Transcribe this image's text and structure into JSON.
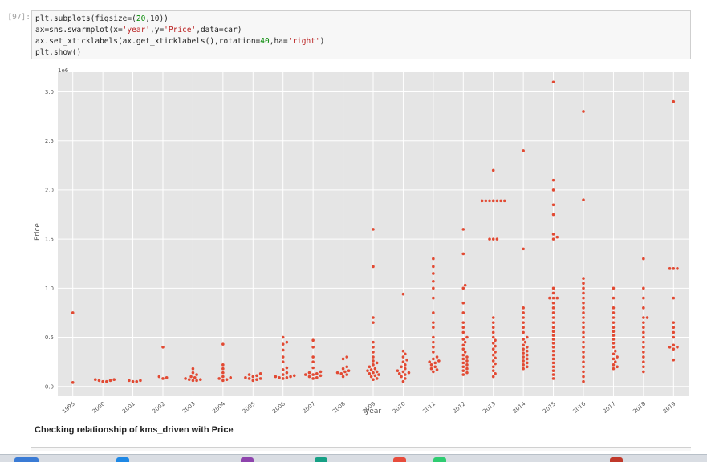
{
  "cell": {
    "prompt": "[97]:",
    "code_lines": [
      "plt.subplots(figsize=(20,10))",
      "ax=sns.swarmplot(x='year',y='Price',data=car)",
      "ax.set_xticklabels(ax.get_xticklabels(),rotation=40,ha='right')",
      "plt.show()"
    ]
  },
  "markdown": {
    "heading": "Checking relationship of kms_driven with Price"
  },
  "chart_data": {
    "type": "scatter",
    "subtype": "swarmplot",
    "xlabel": "year",
    "ylabel": "Price",
    "y_offset_text": "1e6",
    "ylim": [
      -0.1,
      3.2
    ],
    "y_ticks": [
      0.0,
      0.5,
      1.0,
      1.5,
      2.0,
      2.5,
      3.0
    ],
    "y_tick_labels": [
      "0.0",
      "0.5",
      "1.0",
      "1.5",
      "2.0",
      "2.5",
      "3.0"
    ],
    "categories": [
      "1995",
      "2000",
      "2001",
      "2002",
      "2003",
      "2004",
      "2005",
      "2006",
      "2007",
      "2008",
      "2009",
      "2010",
      "2011",
      "2012",
      "2013",
      "2014",
      "2015",
      "2016",
      "2017",
      "2018",
      "2019"
    ],
    "grid": true,
    "style": "ggplot",
    "point_color": "#e24a33",
    "background_color": "#e5e5e5",
    "values_in_millions": {
      "1995": [
        0.04,
        0.75
      ],
      "2000": [
        0.05,
        0.05,
        0.06,
        0.06,
        0.07,
        0.07
      ],
      "2001": [
        0.05,
        0.05,
        0.06,
        0.06
      ],
      "2002": [
        0.08,
        0.09,
        0.1,
        0.4
      ],
      "2003": [
        0.06,
        0.06,
        0.07,
        0.07,
        0.08,
        0.09,
        0.1,
        0.12,
        0.14,
        0.18
      ],
      "2004": [
        0.06,
        0.07,
        0.08,
        0.09,
        0.1,
        0.14,
        0.18,
        0.22,
        0.43
      ],
      "2005": [
        0.06,
        0.07,
        0.08,
        0.08,
        0.09,
        0.1,
        0.11,
        0.12,
        0.13
      ],
      "2006": [
        0.08,
        0.09,
        0.09,
        0.1,
        0.1,
        0.11,
        0.12,
        0.14,
        0.17,
        0.19,
        0.25,
        0.3,
        0.37,
        0.43,
        0.45,
        0.5
      ],
      "2007": [
        0.08,
        0.09,
        0.1,
        0.11,
        0.12,
        0.12,
        0.13,
        0.14,
        0.15,
        0.19,
        0.25,
        0.3,
        0.4,
        0.47
      ],
      "2008": [
        0.1,
        0.12,
        0.13,
        0.14,
        0.15,
        0.16,
        0.18,
        0.2,
        0.28,
        0.3
      ],
      "2009": [
        0.07,
        0.08,
        0.1,
        0.11,
        0.12,
        0.13,
        0.14,
        0.15,
        0.16,
        0.17,
        0.18,
        0.2,
        0.22,
        0.24,
        0.26,
        0.3,
        0.35,
        0.4,
        0.45,
        0.65,
        0.7,
        1.22,
        1.6
      ],
      "2010": [
        0.05,
        0.08,
        0.1,
        0.12,
        0.13,
        0.14,
        0.15,
        0.16,
        0.18,
        0.2,
        0.22,
        0.25,
        0.27,
        0.3,
        0.33,
        0.36,
        0.94
      ],
      "2011": [
        0.15,
        0.17,
        0.18,
        0.2,
        0.22,
        0.24,
        0.25,
        0.26,
        0.28,
        0.3,
        0.35,
        0.4,
        0.45,
        0.5,
        0.6,
        0.65,
        0.75,
        0.9,
        1.0,
        1.07,
        1.15,
        1.22,
        1.3
      ],
      "2012": [
        0.12,
        0.14,
        0.16,
        0.18,
        0.2,
        0.22,
        0.24,
        0.26,
        0.28,
        0.3,
        0.32,
        0.35,
        0.38,
        0.42,
        0.45,
        0.48,
        0.5,
        0.55,
        0.6,
        0.65,
        0.75,
        0.85,
        1.0,
        1.03,
        1.35,
        1.6
      ],
      "2013": [
        0.1,
        0.13,
        0.16,
        0.2,
        0.23,
        0.26,
        0.29,
        0.32,
        0.35,
        0.38,
        0.41,
        0.44,
        0.47,
        0.5,
        0.55,
        0.6,
        0.65,
        0.7,
        1.5,
        1.5,
        1.5,
        1.89,
        1.89,
        1.89,
        1.89,
        1.89,
        1.89,
        1.89,
        1.89,
        2.2
      ],
      "2014": [
        0.18,
        0.2,
        0.22,
        0.24,
        0.26,
        0.28,
        0.3,
        0.32,
        0.34,
        0.36,
        0.38,
        0.4,
        0.42,
        0.45,
        0.48,
        0.5,
        0.55,
        0.6,
        0.65,
        0.7,
        0.75,
        0.8,
        1.4,
        2.4
      ],
      "2015": [
        0.08,
        0.12,
        0.16,
        0.2,
        0.24,
        0.28,
        0.32,
        0.36,
        0.4,
        0.44,
        0.48,
        0.52,
        0.56,
        0.6,
        0.65,
        0.7,
        0.75,
        0.8,
        0.85,
        0.9,
        0.9,
        0.9,
        0.95,
        1.0,
        1.5,
        1.52,
        1.55,
        1.75,
        1.85,
        2.0,
        2.1,
        3.1
      ],
      "2016": [
        0.05,
        0.1,
        0.15,
        0.2,
        0.25,
        0.3,
        0.35,
        0.4,
        0.45,
        0.5,
        0.55,
        0.6,
        0.65,
        0.7,
        0.75,
        0.8,
        0.85,
        0.9,
        0.95,
        1.0,
        1.05,
        1.1,
        1.9,
        2.8
      ],
      "2017": [
        0.18,
        0.2,
        0.22,
        0.25,
        0.28,
        0.3,
        0.33,
        0.36,
        0.4,
        0.44,
        0.48,
        0.52,
        0.56,
        0.6,
        0.65,
        0.7,
        0.75,
        0.8,
        0.9,
        1.0
      ],
      "2018": [
        0.15,
        0.2,
        0.25,
        0.3,
        0.35,
        0.4,
        0.45,
        0.5,
        0.55,
        0.6,
        0.65,
        0.7,
        0.7,
        0.8,
        0.9,
        1.0,
        1.3
      ],
      "2019": [
        0.27,
        0.38,
        0.4,
        0.4,
        0.42,
        0.5,
        0.55,
        0.6,
        0.65,
        0.9,
        1.2,
        1.2,
        1.2,
        2.9
      ]
    }
  }
}
